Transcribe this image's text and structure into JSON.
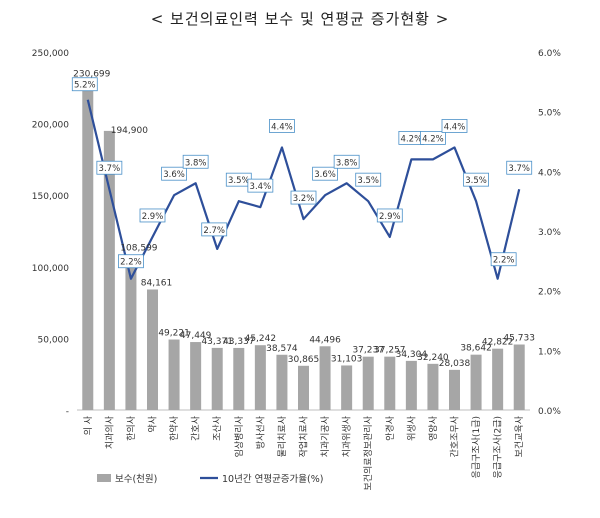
{
  "title": "< 보건의료인력 보수 및 연평균 증가현황 >",
  "chart_data": {
    "type": "bar",
    "title": "< 보건의료인력 보수 및 연평균 증가현황 >",
    "categories": [
      "의 사",
      "치과의사",
      "한의사",
      "약사",
      "한약사",
      "간호사",
      "조산사",
      "임상병리사",
      "방사선사",
      "물리치료사",
      "작업치료사",
      "치과기공사",
      "치과위생사",
      "보건의료정보관리사",
      "안경사",
      "위생사",
      "영양사",
      "간호조무사",
      "응급구조사(1급)",
      "응급구조사(2급)",
      "보건교육사"
    ],
    "series": [
      {
        "name": "보수(천원)",
        "type": "bar",
        "axis": "left",
        "color": "#a6a6a6",
        "values": [
          230699,
          194900,
          108599,
          84161,
          49221,
          47449,
          43371,
          43337,
          45242,
          38574,
          30865,
          44496,
          31103,
          37237,
          37257,
          34304,
          32240,
          28038,
          38642,
          42822,
          45733
        ],
        "labels": [
          "230,699",
          "194,900",
          "108,599",
          "84,161",
          "49,221",
          "47,449",
          "43,371",
          "43,337",
          "45,242",
          "38,574",
          "30,865",
          "44,496",
          "31,103",
          "37,237",
          "37,257",
          "34,304",
          "32,240",
          "28,038",
          "38,642",
          "42,822",
          "45,733"
        ]
      },
      {
        "name": "10년간 연평균증가율(%)",
        "type": "line",
        "axis": "right",
        "color": "#2e4f9a",
        "values": [
          5.2,
          3.7,
          2.2,
          2.9,
          3.6,
          3.8,
          2.7,
          3.5,
          3.4,
          4.4,
          3.2,
          3.6,
          3.8,
          3.5,
          2.9,
          4.2,
          4.2,
          4.4,
          3.5,
          2.2,
          3.7
        ],
        "labels": [
          "5.2%",
          "3.7%",
          "2.2%",
          "2.9%",
          "3.6%",
          "3.8%",
          "2.7%",
          "3.5%",
          "3.4%",
          "4.4%",
          "3.2%",
          "3.6%",
          "3.8%",
          "3.5%",
          "2.9%",
          "4.2%",
          "4.2%",
          "4.4%",
          "3.5%",
          "2.2%",
          "3.7%"
        ]
      }
    ],
    "y_left": {
      "range": [
        0,
        250000
      ],
      "ticks": [
        "-",
        "50,000",
        "100,000",
        "150,000",
        "200,000",
        "250,000"
      ],
      "tick_values": [
        0,
        50000,
        100000,
        150000,
        200000,
        250000
      ]
    },
    "y_right": {
      "range": [
        0,
        6
      ],
      "ticks": [
        "0.0%",
        "1.0%",
        "2.0%",
        "3.0%",
        "4.0%",
        "5.0%",
        "6.0%"
      ],
      "tick_values": [
        0,
        1,
        2,
        3,
        4,
        5,
        6
      ]
    },
    "grid": false,
    "legend_position": "bottom-left",
    "colors": {
      "bar": "#a6a6a6",
      "line": "#2e4f9a",
      "label_box_border": "#4a90c8",
      "axis": "#bfbfbf",
      "text": "#333333"
    }
  }
}
